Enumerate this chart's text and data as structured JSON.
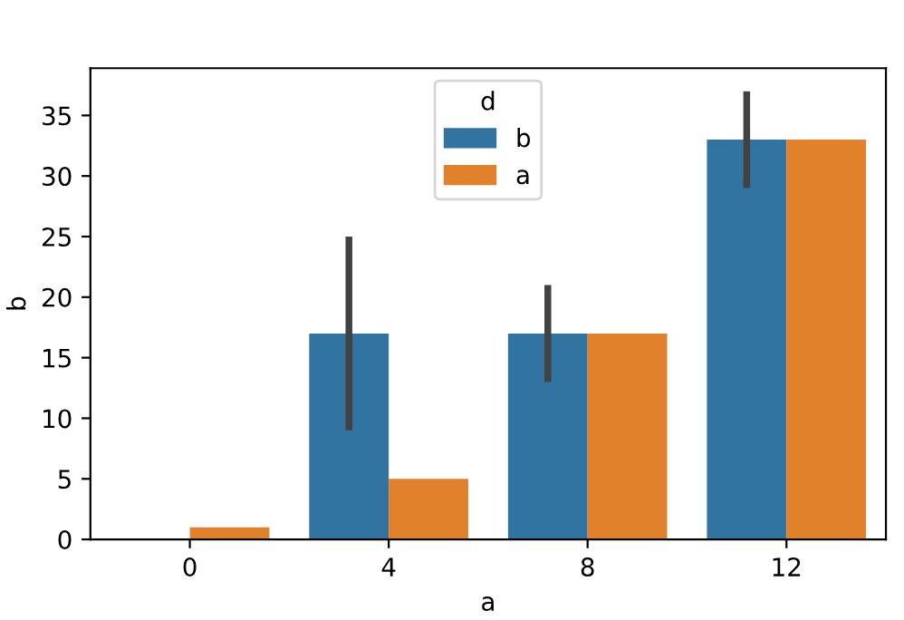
{
  "chart_data": {
    "type": "bar",
    "xlabel": "a",
    "ylabel": "b",
    "legend_title": "d",
    "categories": [
      "0",
      "4",
      "8",
      "12"
    ],
    "series": [
      {
        "name": "b",
        "color": "#3274a1",
        "values": [
          null,
          17,
          17,
          33
        ],
        "errors": [
          null,
          [
            9,
            25
          ],
          [
            13,
            21
          ],
          [
            29,
            37
          ]
        ]
      },
      {
        "name": "a",
        "color": "#e1812c",
        "values": [
          1,
          5,
          17,
          33
        ]
      }
    ],
    "ylim": [
      0,
      38.9
    ],
    "yticks": [
      0,
      5,
      10,
      15,
      20,
      25,
      30,
      35
    ],
    "grid": false,
    "legend": "top"
  }
}
